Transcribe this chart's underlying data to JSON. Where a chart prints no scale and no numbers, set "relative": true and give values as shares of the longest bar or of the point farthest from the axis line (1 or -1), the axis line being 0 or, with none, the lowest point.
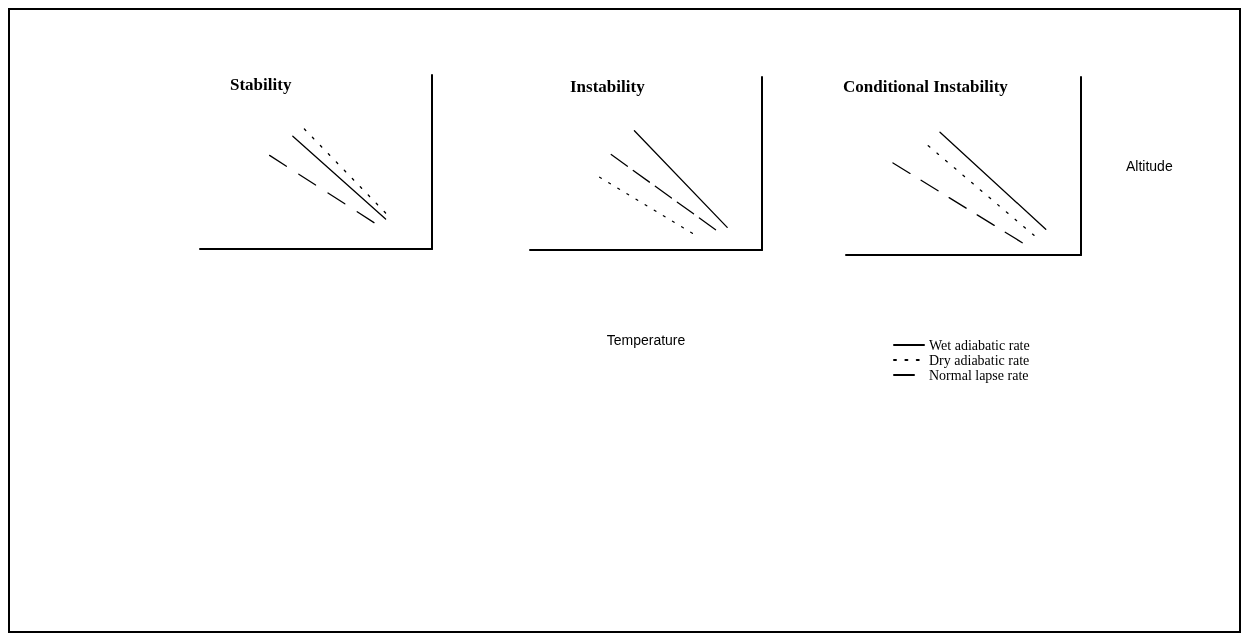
{
  "chart_data": [
    {
      "type": "line",
      "title": "Stability",
      "relative": true,
      "grid": false,
      "categories": [
        null,
        null,
        null,
        null,
        null,
        null,
        null,
        null,
        null,
        null,
        null,
        null,
        null,
        null,
        null,
        null,
        null,
        null,
        null,
        null,
        null
      ],
      "series": [
        {
          "color": "#000000",
          "line_style": "solid",
          "values": [
            null,
            null,
            null,
            null,
            null,
            null,
            null,
            null,
            0.94,
            null,
            null,
            null,
            null,
            null,
            null,
            null,
            0.25,
            null,
            null,
            null,
            null
          ]
        },
        {
          "color": "#000000",
          "line_style": "dotted",
          "values": [
            null,
            null,
            null,
            null,
            null,
            null,
            null,
            null,
            null,
            1,
            null,
            null,
            null,
            null,
            null,
            null,
            0.3,
            null,
            null,
            null,
            null
          ]
        },
        {
          "color": "#000000",
          "line_style": "dashed",
          "values": [
            null,
            null,
            null,
            null,
            null,
            null,
            0.78,
            null,
            null,
            null,
            null,
            null,
            null,
            null,
            null,
            0.22,
            null,
            null,
            null,
            null,
            null
          ]
        }
      ]
    },
    {
      "type": "line",
      "title": "Instability",
      "xlabel": "Temperature",
      "relative": true,
      "grid": false,
      "categories": [
        null,
        null,
        null,
        null,
        null,
        null,
        null,
        null,
        null,
        null,
        null,
        null,
        null,
        null,
        null,
        null,
        null,
        null,
        null,
        null,
        null
      ],
      "series": [
        {
          "color": "#000000",
          "line_style": "solid",
          "values": [
            null,
            null,
            null,
            null,
            null,
            null,
            null,
            null,
            null,
            1,
            null,
            null,
            null,
            null,
            null,
            null,
            null,
            0.19,
            null,
            null,
            null
          ]
        },
        {
          "color": "#000000",
          "line_style": "dotted",
          "values": [
            null,
            null,
            null,
            null,
            null,
            null,
            0.61,
            null,
            null,
            null,
            null,
            null,
            null,
            null,
            0.14,
            null,
            null,
            null,
            null,
            null,
            null
          ]
        },
        {
          "color": "#000000",
          "line_style": "dashed",
          "values": [
            null,
            null,
            null,
            null,
            null,
            null,
            null,
            0.8,
            null,
            null,
            null,
            null,
            null,
            null,
            null,
            null,
            0.17,
            null,
            null,
            null,
            null
          ]
        }
      ]
    },
    {
      "type": "line",
      "title": "Conditional Instability",
      "ylabel": "Altitude",
      "relative": true,
      "grid": false,
      "legend": "bottom",
      "categories": [
        null,
        null,
        null,
        null,
        null,
        null,
        null,
        null,
        null,
        null,
        null,
        null,
        null,
        null,
        null,
        null,
        null,
        null,
        null,
        null,
        null
      ],
      "series": [
        {
          "name": "Wet adiabatic rate",
          "color": "#000000",
          "line_style": "solid",
          "values": [
            null,
            null,
            null,
            null,
            null,
            null,
            null,
            null,
            1,
            null,
            null,
            null,
            null,
            null,
            null,
            null,
            null,
            0.21,
            null,
            null,
            null
          ]
        },
        {
          "name": "Dry adiabatic rate",
          "color": "#000000",
          "line_style": "dotted",
          "values": [
            null,
            null,
            null,
            null,
            null,
            null,
            null,
            0.89,
            null,
            null,
            null,
            null,
            null,
            null,
            null,
            null,
            0.16,
            null,
            null,
            null,
            null
          ]
        },
        {
          "name": "Normal lapse rate",
          "color": "#000000",
          "line_style": "dashed",
          "values": [
            null,
            null,
            null,
            null,
            0.75,
            null,
            null,
            null,
            null,
            null,
            null,
            null,
            null,
            null,
            null,
            0.1,
            null,
            null,
            null,
            null,
            null
          ]
        }
      ]
    }
  ]
}
